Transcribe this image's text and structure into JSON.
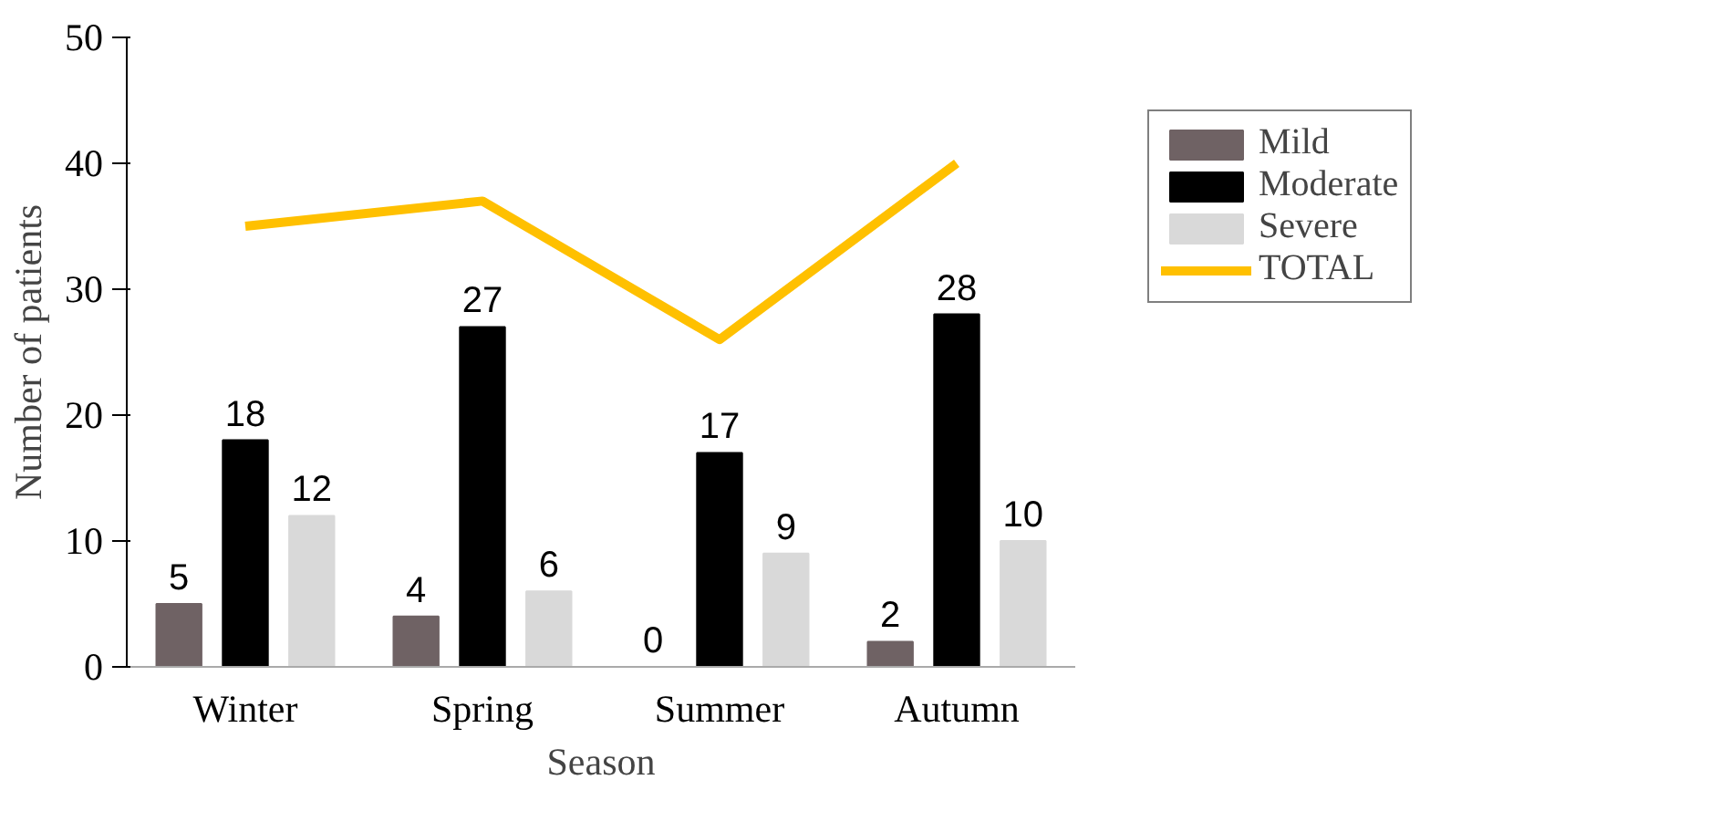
{
  "chart_data": {
    "type": "bar",
    "xlabel": "Season",
    "ylabel": "Number of patients",
    "categories": [
      "Winter",
      "Spring",
      "Summer",
      "Autumn"
    ],
    "series": [
      {
        "name": "Mild",
        "color": "#6f6264",
        "values": [
          5,
          4,
          0,
          2
        ],
        "value_labels": [
          "5",
          "4",
          "0",
          "2"
        ]
      },
      {
        "name": "Moderate",
        "color": "#000000",
        "values": [
          18,
          27,
          17,
          28
        ],
        "value_labels": [
          "18",
          "27",
          "17",
          "28"
        ]
      },
      {
        "name": "Severe",
        "color": "#d9d9d9",
        "values": [
          12,
          6,
          9,
          10
        ],
        "value_labels": [
          "12",
          "6",
          "9",
          "10"
        ]
      },
      {
        "name": "TOTAL",
        "type": "line",
        "color": "#ffc000",
        "values": [
          35,
          37,
          26,
          40
        ]
      }
    ],
    "ylim": [
      0,
      50
    ],
    "yticks": [
      0,
      10,
      20,
      30,
      40,
      50
    ],
    "grid": false,
    "legend": "top right",
    "marker": "none"
  }
}
